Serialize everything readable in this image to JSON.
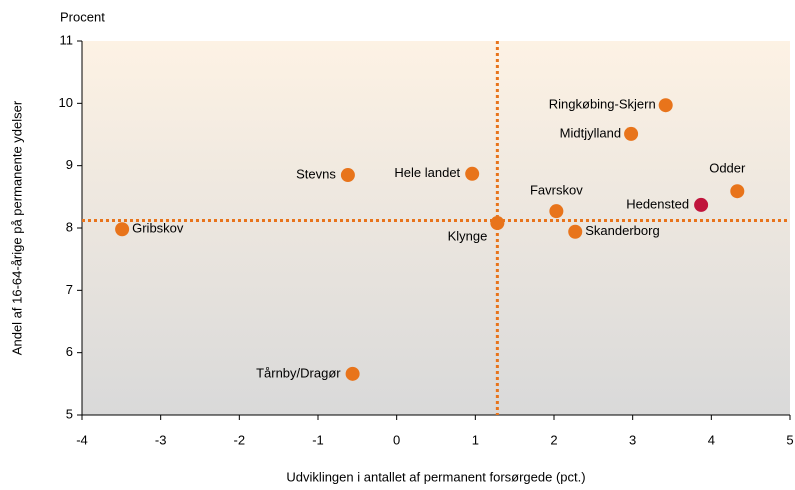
{
  "chart_data": {
    "type": "scatter",
    "y_unit_label": "Procent",
    "y_label": "Andel af 16-64-årige på permanente ydelser",
    "x_label": "Udviklingen i antallet af permanent forsørgede (pct.)",
    "labels": [
      "Gribskov",
      "Stevns",
      "Hele landet",
      "Klynge",
      "Favrskov",
      "Skanderborg",
      "Ringkøbing-Skjern",
      "Midtjylland",
      "Hedensted",
      "Odder",
      "Tårnby/Dragør"
    ],
    "x": [
      -3.49,
      -0.62,
      0.96,
      1.28,
      2.03,
      2.27,
      3.42,
      2.98,
      3.87,
      4.33,
      -0.56
    ],
    "values": [
      7.98,
      8.85,
      8.87,
      8.08,
      8.27,
      7.94,
      9.97,
      9.51,
      8.37,
      8.59,
      5.66
    ],
    "colors": [
      "#e8741b",
      "#e8741b",
      "#e8741b",
      "#e8741b",
      "#e8741b",
      "#e8741b",
      "#e8741b",
      "#e8741b",
      "#c0143c",
      "#e8741b",
      "#e8741b"
    ],
    "reference_lines": {
      "x": 1.28,
      "y": 8.12,
      "color": "#e8741b"
    },
    "xlim": [
      -4,
      5
    ],
    "xticks": [
      -4,
      -3,
      -2,
      -1,
      0,
      1,
      2,
      3,
      4,
      5
    ],
    "ylim": [
      5,
      11
    ],
    "yticks": [
      5,
      6,
      7,
      8,
      9,
      10,
      11
    ]
  }
}
